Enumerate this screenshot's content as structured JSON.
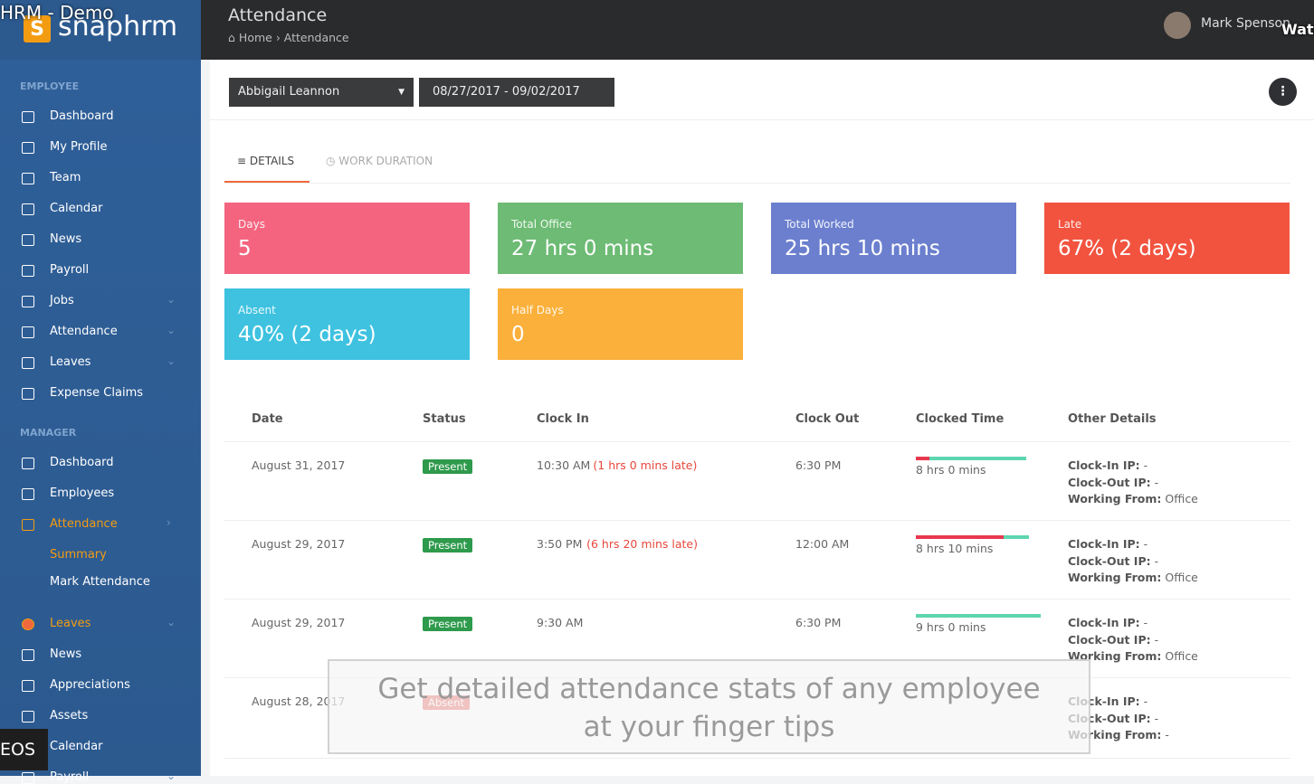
{
  "video_overlay": {
    "title": "HRM - Demo",
    "watch": "Wato",
    "badge": "EOS"
  },
  "logo": {
    "letter": "S",
    "text": "snaphrm"
  },
  "header": {
    "title": "Attendance",
    "breadcrumb": [
      "Home",
      "Attendance"
    ],
    "user": "Mark Spenson"
  },
  "sidebar": {
    "sections": [
      {
        "title": "EMPLOYEE",
        "items": [
          {
            "label": "Dashboard"
          },
          {
            "label": "My Profile"
          },
          {
            "label": "Team"
          },
          {
            "label": "Calendar"
          },
          {
            "label": "News"
          },
          {
            "label": "Payroll"
          },
          {
            "label": "Jobs"
          },
          {
            "label": "Attendance"
          },
          {
            "label": "Leaves"
          },
          {
            "label": "Expense Claims"
          }
        ]
      },
      {
        "title": "MANAGER",
        "items": [
          {
            "label": "Dashboard"
          },
          {
            "label": "Employees"
          },
          {
            "label": "Attendance"
          },
          {
            "label": "Summary"
          },
          {
            "label": "Mark Attendance"
          },
          {
            "label": "Leaves"
          },
          {
            "label": "News"
          },
          {
            "label": "Appreciations"
          },
          {
            "label": "Assets"
          },
          {
            "label": "Calendar"
          },
          {
            "label": "Payroll"
          }
        ]
      }
    ]
  },
  "filters": {
    "employee": "Abbigail Leannon",
    "date_range": "08/27/2017 - 09/02/2017"
  },
  "tabs": [
    "DETAILS",
    "WORK DURATION"
  ],
  "cards": [
    {
      "label": "Days",
      "value": "5"
    },
    {
      "label": "Total Office",
      "value": "27 hrs 0 mins"
    },
    {
      "label": "Total Worked",
      "value": "25 hrs 10 mins"
    },
    {
      "label": "Late",
      "value": "67% (2 days)"
    },
    {
      "label": "Absent",
      "value": "40% (2 days)"
    },
    {
      "label": "Half Days",
      "value": "0"
    }
  ],
  "table": {
    "headers": [
      "Date",
      "Status",
      "Clock In",
      "Clock Out",
      "Clocked Time",
      "Other Details"
    ],
    "rows": [
      {
        "date": "August 31, 2017",
        "status": "Present",
        "clock_in": "10:30 AM",
        "late": "(1 hrs 0 mins late)",
        "clock_out": "6:30 PM",
        "clocked": "8 hrs 0 mins",
        "details": [
          {
            "label": "Clock-In IP:",
            "value": "-"
          },
          {
            "label": "Clock-Out IP:",
            "value": "-"
          },
          {
            "label": "Working From:",
            "value": "Office"
          }
        ]
      },
      {
        "date": "August 29, 2017",
        "status": "Present",
        "clock_in": "3:50 PM",
        "late": "(6 hrs 20 mins late)",
        "clock_out": "12:00 AM",
        "clocked": "8 hrs 10 mins",
        "details": [
          {
            "label": "Clock-In IP:",
            "value": "-"
          },
          {
            "label": "Clock-Out IP:",
            "value": "-"
          },
          {
            "label": "Working From:",
            "value": "Office"
          }
        ]
      },
      {
        "date": "August 29, 2017",
        "status": "Present",
        "clock_in": "9:30 AM",
        "clock_out": "6:30 PM",
        "clocked": "9 hrs 0 mins",
        "details": [
          {
            "label": "Clock-In IP:",
            "value": "-"
          },
          {
            "label": "Clock-Out IP:",
            "value": "-"
          },
          {
            "label": "Working From:",
            "value": "Office"
          }
        ]
      },
      {
        "date": "August 28, 2017",
        "status": "Absent",
        "details": [
          {
            "label": "Clock-In IP:",
            "value": "-"
          },
          {
            "label": "Clock-Out IP:",
            "value": "-"
          },
          {
            "label": "Working From:",
            "value": "-"
          }
        ]
      }
    ]
  },
  "caption": [
    "Get detailed attendance stats of any employee",
    "at your finger tips"
  ]
}
